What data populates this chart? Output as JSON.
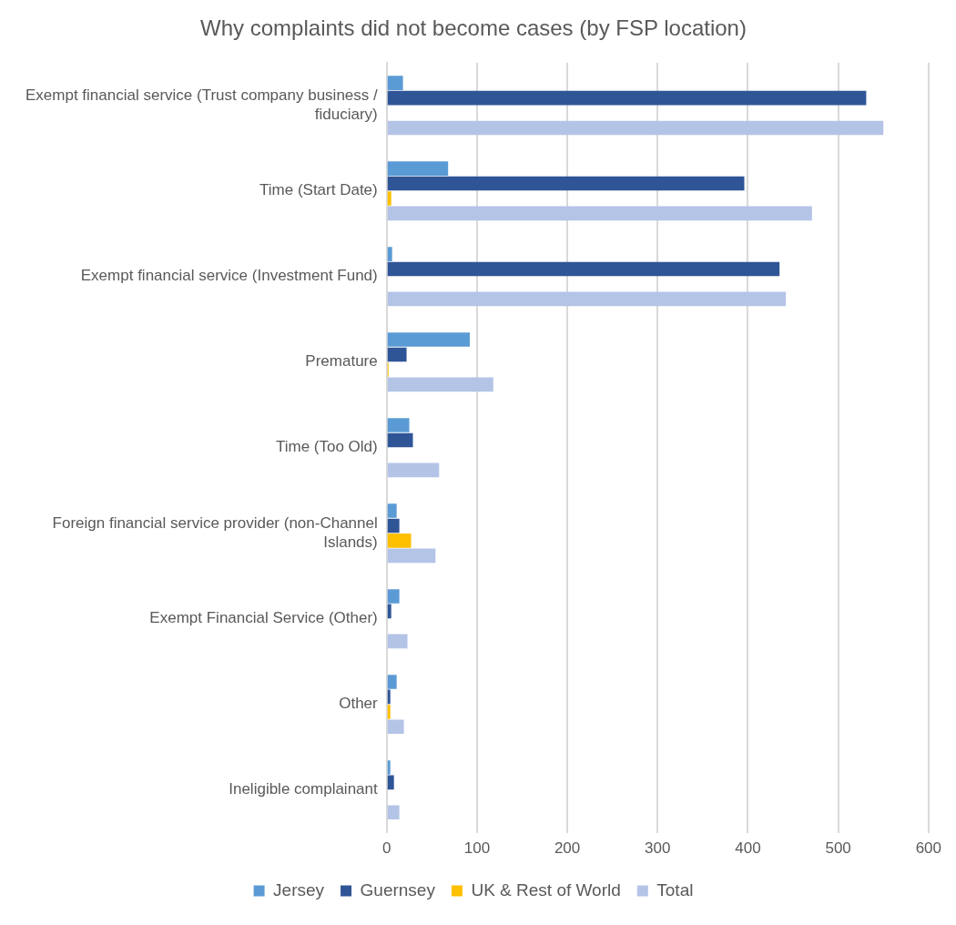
{
  "chart_data": {
    "type": "bar",
    "orientation": "horizontal",
    "title": "Why complaints did not become cases (by FSP location)",
    "categories": [
      "Exempt financial service (Trust company business / fiduciary)",
      "Time (Start Date)",
      "Exempt financial service (Investment Fund)",
      "Premature",
      "Time (Too Old)",
      "Foreign financial service provider (non-Channel Islands)",
      "Exempt Financial Service (Other)",
      "Other",
      "Ineligible complainant"
    ],
    "series": [
      {
        "name": "Jersey",
        "color": "#5b9bd5",
        "values": [
          18,
          68,
          6,
          92,
          25,
          11,
          14,
          11,
          4
        ]
      },
      {
        "name": "Guernsey",
        "color": "#2f5597",
        "values": [
          531,
          396,
          435,
          22,
          29,
          14,
          5,
          4,
          8
        ]
      },
      {
        "name": "UK & Rest of World",
        "color": "#ffc000",
        "values": [
          0,
          5,
          0,
          2,
          0,
          27,
          0,
          4,
          0
        ]
      },
      {
        "name": "Total",
        "color": "#b4c4e7",
        "values": [
          550,
          471,
          442,
          118,
          58,
          54,
          23,
          19,
          14
        ]
      }
    ],
    "xlim": [
      0,
      600
    ],
    "xticks": [
      0,
      100,
      200,
      300,
      400,
      500,
      600
    ],
    "grid": "x",
    "legend": "bottom"
  }
}
